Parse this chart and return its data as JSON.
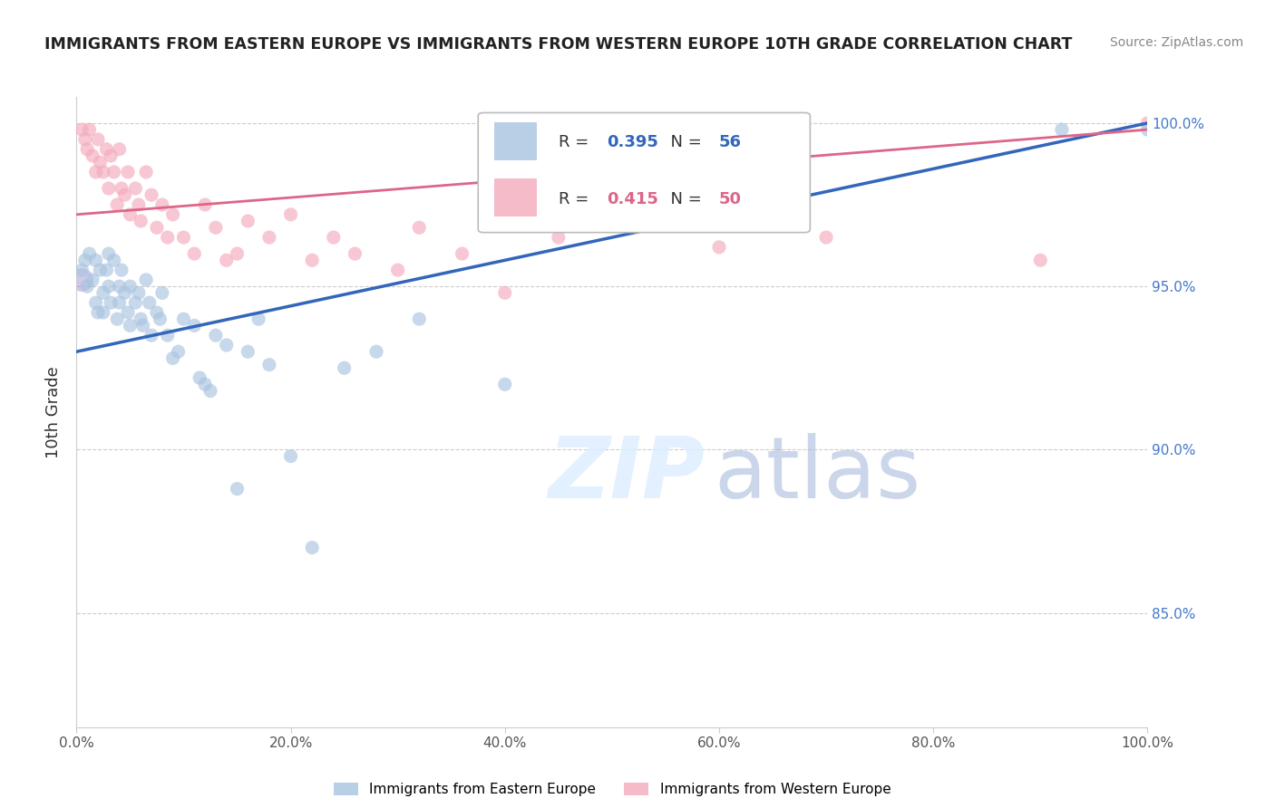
{
  "title": "IMMIGRANTS FROM EASTERN EUROPE VS IMMIGRANTS FROM WESTERN EUROPE 10TH GRADE CORRELATION CHART",
  "source": "Source: ZipAtlas.com",
  "ylabel": "10th Grade",
  "blue_label": "Immigrants from Eastern Europe",
  "pink_label": "Immigrants from Western Europe",
  "blue_R": 0.395,
  "blue_N": 56,
  "pink_R": 0.415,
  "pink_N": 50,
  "blue_color": "#A8C4E0",
  "pink_color": "#F4AABC",
  "blue_line_color": "#3366BB",
  "pink_line_color": "#DD6688",
  "watermark_zip": "ZIP",
  "watermark_atlas": "atlas",
  "xlim": [
    0.0,
    1.0
  ],
  "ylim": [
    0.815,
    1.008
  ],
  "y_tick_positions": [
    0.85,
    0.9,
    0.95,
    1.0
  ],
  "y_tick_labels": [
    "85.0%",
    "90.0%",
    "95.0%",
    "100.0%"
  ],
  "x_tick_positions": [
    0.0,
    0.2,
    0.4,
    0.6,
    0.8,
    1.0
  ],
  "x_tick_labels": [
    "0.0%",
    "20.0%",
    "40.0%",
    "60.0%",
    "80.0%",
    "100.0%"
  ],
  "blue_line_x0": 0.0,
  "blue_line_y0": 0.93,
  "blue_line_x1": 1.0,
  "blue_line_y1": 1.0,
  "pink_line_x0": 0.0,
  "pink_line_y0": 0.972,
  "pink_line_x1": 1.0,
  "pink_line_y1": 0.998,
  "blue_scatter_x": [
    0.005,
    0.008,
    0.01,
    0.012,
    0.015,
    0.018,
    0.018,
    0.02,
    0.022,
    0.025,
    0.025,
    0.028,
    0.03,
    0.03,
    0.032,
    0.035,
    0.038,
    0.04,
    0.04,
    0.042,
    0.045,
    0.048,
    0.05,
    0.05,
    0.055,
    0.058,
    0.06,
    0.062,
    0.065,
    0.068,
    0.07,
    0.075,
    0.078,
    0.08,
    0.085,
    0.09,
    0.095,
    0.1,
    0.11,
    0.115,
    0.12,
    0.125,
    0.13,
    0.14,
    0.15,
    0.16,
    0.17,
    0.18,
    0.2,
    0.22,
    0.25,
    0.28,
    0.32,
    0.4,
    0.92,
    1.0
  ],
  "blue_scatter_y": [
    0.955,
    0.958,
    0.95,
    0.96,
    0.952,
    0.945,
    0.958,
    0.942,
    0.955,
    0.948,
    0.942,
    0.955,
    0.96,
    0.95,
    0.945,
    0.958,
    0.94,
    0.95,
    0.945,
    0.955,
    0.948,
    0.942,
    0.938,
    0.95,
    0.945,
    0.948,
    0.94,
    0.938,
    0.952,
    0.945,
    0.935,
    0.942,
    0.94,
    0.948,
    0.935,
    0.928,
    0.93,
    0.94,
    0.938,
    0.922,
    0.92,
    0.918,
    0.935,
    0.932,
    0.888,
    0.93,
    0.94,
    0.926,
    0.898,
    0.87,
    0.925,
    0.93,
    0.94,
    0.92,
    0.998,
    0.998
  ],
  "pink_scatter_x": [
    0.005,
    0.008,
    0.01,
    0.012,
    0.015,
    0.018,
    0.02,
    0.022,
    0.025,
    0.028,
    0.03,
    0.032,
    0.035,
    0.038,
    0.04,
    0.042,
    0.045,
    0.048,
    0.05,
    0.055,
    0.058,
    0.06,
    0.065,
    0.07,
    0.075,
    0.08,
    0.085,
    0.09,
    0.1,
    0.11,
    0.12,
    0.13,
    0.14,
    0.15,
    0.16,
    0.18,
    0.2,
    0.22,
    0.24,
    0.26,
    0.3,
    0.32,
    0.36,
    0.4,
    0.45,
    0.6,
    0.65,
    0.7,
    0.9,
    1.0
  ],
  "pink_scatter_y": [
    0.998,
    0.995,
    0.992,
    0.998,
    0.99,
    0.985,
    0.995,
    0.988,
    0.985,
    0.992,
    0.98,
    0.99,
    0.985,
    0.975,
    0.992,
    0.98,
    0.978,
    0.985,
    0.972,
    0.98,
    0.975,
    0.97,
    0.985,
    0.978,
    0.968,
    0.975,
    0.965,
    0.972,
    0.965,
    0.96,
    0.975,
    0.968,
    0.958,
    0.96,
    0.97,
    0.965,
    0.972,
    0.958,
    0.965,
    0.96,
    0.955,
    0.968,
    0.96,
    0.948,
    0.965,
    0.962,
    0.97,
    0.965,
    0.958,
    1.0
  ],
  "purple_x": [
    0.005
  ],
  "purple_y": [
    0.952
  ]
}
